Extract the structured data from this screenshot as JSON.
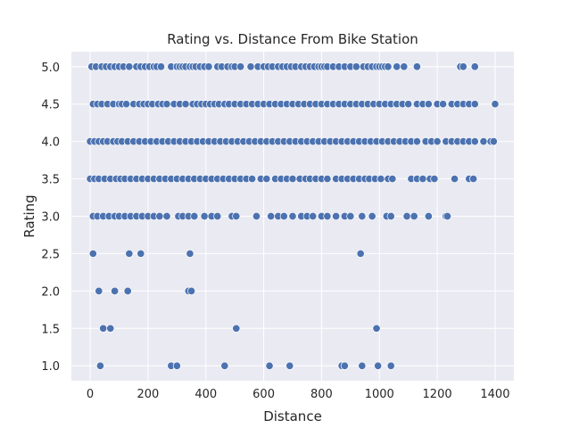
{
  "chart_data": {
    "type": "scatter",
    "title": "Rating vs. Distance From Bike Station",
    "xlabel": "Distance",
    "ylabel": "Rating",
    "xlim": [
      -65,
      1465
    ],
    "ylim": [
      0.8,
      5.2
    ],
    "xticks": [
      0,
      200,
      400,
      600,
      800,
      1000,
      1200,
      1400
    ],
    "yticks": [
      1.0,
      1.5,
      2.0,
      2.5,
      3.0,
      3.5,
      4.0,
      4.5,
      5.0
    ],
    "grid": true,
    "colors": {
      "background": "#EAEAF2",
      "grid": "#FFFFFF",
      "marker": "#4C72B0",
      "marker_edge": "#FFFFFF"
    },
    "series": [
      {
        "x": [
          5,
          20,
          40,
          55,
          70,
          85,
          100,
          115,
          135,
          160,
          175,
          190,
          205,
          220,
          230,
          245,
          280,
          300,
          310,
          320,
          330,
          345,
          355,
          365,
          380,
          395,
          410,
          440,
          455,
          475,
          490,
          500,
          520,
          555,
          580,
          600,
          615,
          630,
          650,
          665,
          680,
          695,
          710,
          730,
          745,
          760,
          775,
          790,
          800,
          810,
          820,
          840,
          860,
          880,
          900,
          920,
          945,
          960,
          975,
          990,
          1000,
          1010,
          1020,
          1030,
          1060,
          1085,
          1130,
          1280,
          1290,
          1330,
          10,
          25,
          40,
          60,
          80,
          100,
          110,
          125,
          150,
          170,
          185,
          200,
          215,
          235,
          250,
          265,
          290,
          310,
          330,
          355,
          370,
          385,
          400,
          415,
          430,
          445,
          465,
          480,
          500,
          520,
          540,
          560,
          580,
          600,
          620,
          640,
          660,
          680,
          700,
          720,
          740,
          760,
          780,
          800,
          820,
          840,
          860,
          880,
          900,
          920,
          940,
          960,
          980,
          1000,
          1020,
          1040,
          1060,
          1080,
          1100,
          1130,
          1150,
          1170,
          1200,
          1220,
          1250,
          1270,
          1290,
          1310,
          1330,
          1400,
          0,
          15,
          30,
          45,
          60,
          80,
          95,
          110,
          130,
          150,
          170,
          190,
          210,
          230,
          250,
          270,
          290,
          310,
          330,
          350,
          370,
          390,
          410,
          430,
          450,
          470,
          490,
          510,
          530,
          550,
          570,
          590,
          610,
          630,
          650,
          670,
          690,
          710,
          730,
          750,
          770,
          790,
          810,
          830,
          850,
          870,
          890,
          910,
          930,
          950,
          970,
          990,
          1010,
          1030,
          1050,
          1070,
          1090,
          1110,
          1130,
          1160,
          1180,
          1200,
          1230,
          1250,
          1270,
          1290,
          1310,
          1330,
          1360,
          1385,
          1395,
          0,
          15,
          30,
          50,
          70,
          90,
          105,
          120,
          140,
          160,
          180,
          200,
          220,
          240,
          260,
          280,
          300,
          320,
          340,
          360,
          380,
          400,
          420,
          440,
          460,
          480,
          500,
          520,
          540,
          560,
          590,
          610,
          640,
          660,
          680,
          700,
          725,
          745,
          760,
          780,
          800,
          820,
          850,
          870,
          890,
          910,
          930,
          950,
          965,
          985,
          1005,
          1030,
          1045,
          1110,
          1130,
          1150,
          1175,
          1190,
          1260,
          1310,
          1325,
          10,
          25,
          45,
          65,
          85,
          100,
          120,
          140,
          160,
          180,
          200,
          220,
          240,
          265,
          305,
          320,
          340,
          360,
          395,
          420,
          440,
          490,
          505,
          575,
          625,
          650,
          670,
          700,
          730,
          750,
          770,
          800,
          820,
          850,
          880,
          900,
          940,
          975,
          1025,
          1040,
          1095,
          1120,
          1170,
          1230,
          1235,
          10,
          135,
          175,
          345,
          935,
          30,
          85,
          130,
          340,
          350,
          45,
          70,
          505,
          990,
          35,
          280,
          300,
          465,
          620,
          690,
          870,
          880,
          940,
          995,
          1040
        ],
        "y": [
          5.0,
          5.0,
          5.0,
          5.0,
          5.0,
          5.0,
          5.0,
          5.0,
          5.0,
          5.0,
          5.0,
          5.0,
          5.0,
          5.0,
          5.0,
          5.0,
          5.0,
          5.0,
          5.0,
          5.0,
          5.0,
          5.0,
          5.0,
          5.0,
          5.0,
          5.0,
          5.0,
          5.0,
          5.0,
          5.0,
          5.0,
          5.0,
          5.0,
          5.0,
          5.0,
          5.0,
          5.0,
          5.0,
          5.0,
          5.0,
          5.0,
          5.0,
          5.0,
          5.0,
          5.0,
          5.0,
          5.0,
          5.0,
          5.0,
          5.0,
          5.0,
          5.0,
          5.0,
          5.0,
          5.0,
          5.0,
          5.0,
          5.0,
          5.0,
          5.0,
          5.0,
          5.0,
          5.0,
          5.0,
          5.0,
          5.0,
          5.0,
          5.0,
          5.0,
          5.0,
          4.5,
          4.5,
          4.5,
          4.5,
          4.5,
          4.5,
          4.5,
          4.5,
          4.5,
          4.5,
          4.5,
          4.5,
          4.5,
          4.5,
          4.5,
          4.5,
          4.5,
          4.5,
          4.5,
          4.5,
          4.5,
          4.5,
          4.5,
          4.5,
          4.5,
          4.5,
          4.5,
          4.5,
          4.5,
          4.5,
          4.5,
          4.5,
          4.5,
          4.5,
          4.5,
          4.5,
          4.5,
          4.5,
          4.5,
          4.5,
          4.5,
          4.5,
          4.5,
          4.5,
          4.5,
          4.5,
          4.5,
          4.5,
          4.5,
          4.5,
          4.5,
          4.5,
          4.5,
          4.5,
          4.5,
          4.5,
          4.5,
          4.5,
          4.5,
          4.5,
          4.5,
          4.5,
          4.5,
          4.5,
          4.5,
          4.5,
          4.5,
          4.5,
          4.5,
          4.5,
          4.0,
          4.0,
          4.0,
          4.0,
          4.0,
          4.0,
          4.0,
          4.0,
          4.0,
          4.0,
          4.0,
          4.0,
          4.0,
          4.0,
          4.0,
          4.0,
          4.0,
          4.0,
          4.0,
          4.0,
          4.0,
          4.0,
          4.0,
          4.0,
          4.0,
          4.0,
          4.0,
          4.0,
          4.0,
          4.0,
          4.0,
          4.0,
          4.0,
          4.0,
          4.0,
          4.0,
          4.0,
          4.0,
          4.0,
          4.0,
          4.0,
          4.0,
          4.0,
          4.0,
          4.0,
          4.0,
          4.0,
          4.0,
          4.0,
          4.0,
          4.0,
          4.0,
          4.0,
          4.0,
          4.0,
          4.0,
          4.0,
          4.0,
          4.0,
          4.0,
          4.0,
          4.0,
          4.0,
          4.0,
          4.0,
          4.0,
          4.0,
          4.0,
          4.0,
          4.0,
          4.0,
          3.5,
          3.5,
          3.5,
          3.5,
          3.5,
          3.5,
          3.5,
          3.5,
          3.5,
          3.5,
          3.5,
          3.5,
          3.5,
          3.5,
          3.5,
          3.5,
          3.5,
          3.5,
          3.5,
          3.5,
          3.5,
          3.5,
          3.5,
          3.5,
          3.5,
          3.5,
          3.5,
          3.5,
          3.5,
          3.5,
          3.5,
          3.5,
          3.5,
          3.5,
          3.5,
          3.5,
          3.5,
          3.5,
          3.5,
          3.5,
          3.5,
          3.5,
          3.5,
          3.5,
          3.5,
          3.5,
          3.5,
          3.5,
          3.5,
          3.5,
          3.5,
          3.5,
          3.5,
          3.5,
          3.5,
          3.5,
          3.5,
          3.5,
          3.5,
          3.5,
          3.5,
          3.0,
          3.0,
          3.0,
          3.0,
          3.0,
          3.0,
          3.0,
          3.0,
          3.0,
          3.0,
          3.0,
          3.0,
          3.0,
          3.0,
          3.0,
          3.0,
          3.0,
          3.0,
          3.0,
          3.0,
          3.0,
          3.0,
          3.0,
          3.0,
          3.0,
          3.0,
          3.0,
          3.0,
          3.0,
          3.0,
          3.0,
          3.0,
          3.0,
          3.0,
          3.0,
          3.0,
          3.0,
          3.0,
          3.0,
          3.0,
          3.0,
          3.0,
          3.0,
          3.0,
          3.0,
          2.5,
          2.5,
          2.5,
          2.5,
          2.5,
          2.0,
          2.0,
          2.0,
          2.0,
          2.0,
          1.5,
          1.5,
          1.5,
          1.5,
          1.0,
          1.0,
          1.0,
          1.0,
          1.0,
          1.0,
          1.0,
          1.0,
          1.0,
          1.0,
          1.0
        ]
      }
    ]
  }
}
